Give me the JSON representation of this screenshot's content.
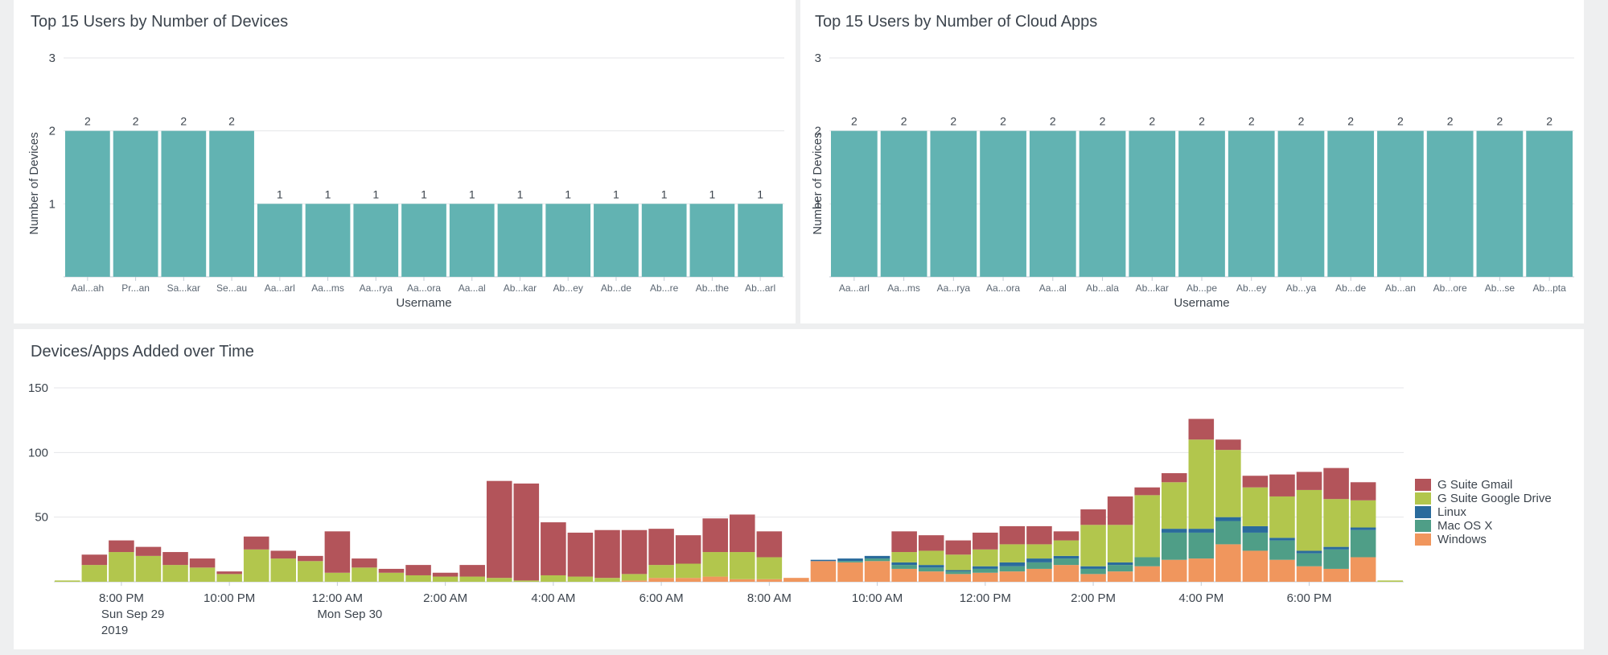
{
  "colors": {
    "bar": "#62b3b2",
    "grid": "#e4e6e8",
    "axis": "#c3cbd4",
    "series": [
      "#f0965d",
      "#4f9e87",
      "#2a6b9c",
      "#b2c64d",
      "#b3545a"
    ]
  },
  "chart_data": [
    {
      "type": "bar",
      "title": "Top 15 Users by Number of Devices",
      "xlabel": "Username",
      "ylabel": "Number of Devices",
      "ylim": [
        0,
        3
      ],
      "yticks": [
        "1",
        "2",
        "3"
      ],
      "categories": [
        "Aal...ah",
        "Pr...an",
        "Sa...kar",
        "Se...au",
        "Aa...arl",
        "Aa...ms",
        "Aa...rya",
        "Aa...ora",
        "Aa...al",
        "Ab...kar",
        "Ab...ey",
        "Ab...de",
        "Ab...re",
        "Ab...the",
        "Ab...arl"
      ],
      "values": [
        2,
        2,
        2,
        2,
        1,
        1,
        1,
        1,
        1,
        1,
        1,
        1,
        1,
        1,
        1
      ],
      "data_labels": [
        "2",
        "2",
        "2",
        "2",
        "1",
        "1",
        "1",
        "1",
        "1",
        "1",
        "1",
        "1",
        "1",
        "1",
        "1"
      ]
    },
    {
      "type": "bar",
      "title": "Top 15 Users by Number of Cloud Apps",
      "xlabel": "Username",
      "ylabel": "Number of Devices",
      "ylim": [
        0,
        3
      ],
      "yticks": [
        "1",
        "2",
        "3"
      ],
      "categories": [
        "Aa...arl",
        "Aa...ms",
        "Aa...rya",
        "Aa...ora",
        "Aa...al",
        "Ab...ala",
        "Ab...kar",
        "Ab...pe",
        "Ab...ey",
        "Ab...ya",
        "Ab...de",
        "Ab...an",
        "Ab...ore",
        "Ab...se",
        "Ab...pta"
      ],
      "values": [
        2,
        2,
        2,
        2,
        2,
        2,
        2,
        2,
        2,
        2,
        2,
        2,
        2,
        2,
        2
      ],
      "data_labels": [
        "2",
        "2",
        "2",
        "2",
        "2",
        "2",
        "2",
        "2",
        "2",
        "2",
        "2",
        "2",
        "2",
        "2",
        "2"
      ]
    },
    {
      "type": "bar",
      "stacked": true,
      "title": "Devices/Apps Added over Time",
      "ylim": [
        0,
        150
      ],
      "yticks": [
        "50",
        "100",
        "150"
      ],
      "time_labels": [
        {
          "slot": 2.5,
          "lines": [
            "8:00 PM",
            "Sun Sep 29",
            "2019"
          ]
        },
        {
          "slot": 6.5,
          "lines": [
            "10:00 PM"
          ]
        },
        {
          "slot": 10.5,
          "lines": [
            "12:00 AM",
            "Mon Sep 30"
          ]
        },
        {
          "slot": 14.5,
          "lines": [
            "2:00 AM"
          ]
        },
        {
          "slot": 18.5,
          "lines": [
            "4:00 AM"
          ]
        },
        {
          "slot": 22.5,
          "lines": [
            "6:00 AM"
          ]
        },
        {
          "slot": 26.5,
          "lines": [
            "8:00 AM"
          ]
        },
        {
          "slot": 30.5,
          "lines": [
            "10:00 AM"
          ]
        },
        {
          "slot": 34.5,
          "lines": [
            "12:00 PM"
          ]
        },
        {
          "slot": 38.5,
          "lines": [
            "2:00 PM"
          ]
        },
        {
          "slot": 42.5,
          "lines": [
            "4:00 PM"
          ]
        },
        {
          "slot": 46.5,
          "lines": [
            "6:00 PM"
          ]
        }
      ],
      "legend": [
        "G Suite Gmail",
        "G Suite Google Drive",
        "Linux",
        "Mac OS X",
        "Windows"
      ],
      "series": [
        {
          "name": "Windows",
          "values": [
            0,
            0,
            0,
            0,
            0,
            0,
            0,
            0,
            0,
            0,
            0,
            0,
            0,
            0,
            0,
            0,
            0,
            0,
            0,
            0,
            0,
            1,
            3,
            3,
            4,
            2,
            2,
            3,
            16,
            15,
            16,
            10,
            8,
            6,
            7,
            8,
            10,
            13,
            6,
            8,
            12,
            17,
            18,
            29,
            24,
            17,
            12,
            10,
            19,
            0
          ]
        },
        {
          "name": "Mac OS X",
          "values": [
            0,
            0,
            0,
            0,
            0,
            0,
            0,
            0,
            0,
            0,
            0,
            0,
            0,
            0,
            0,
            0,
            0,
            0,
            0,
            0,
            0,
            0,
            0,
            0,
            0,
            0,
            0,
            0,
            0,
            1,
            2,
            3,
            3,
            2,
            3,
            4,
            5,
            5,
            4,
            5,
            7,
            21,
            20,
            18,
            14,
            15,
            10,
            15,
            21,
            0
          ]
        },
        {
          "name": "Linux",
          "values": [
            0,
            0,
            0,
            0,
            0,
            0,
            0,
            0,
            0,
            0,
            0,
            0,
            0,
            0,
            0,
            0,
            0,
            0,
            0,
            0,
            0,
            0,
            0,
            0,
            0,
            0,
            0,
            0,
            1,
            2,
            2,
            2,
            2,
            1,
            2,
            3,
            3,
            2,
            2,
            2,
            0,
            3,
            3,
            3,
            5,
            2,
            2,
            2,
            2,
            0
          ]
        },
        {
          "name": "G Suite Google Drive",
          "values": [
            1,
            13,
            23,
            20,
            13,
            11,
            6,
            25,
            18,
            16,
            7,
            11,
            7,
            5,
            4,
            4,
            3,
            1,
            5,
            4,
            3,
            5,
            10,
            11,
            19,
            21,
            17,
            0,
            0,
            0,
            0,
            8,
            11,
            12,
            13,
            14,
            11,
            12,
            32,
            29,
            48,
            36,
            69,
            52,
            30,
            32,
            47,
            37,
            21,
            1
          ]
        },
        {
          "name": "G Suite Gmail",
          "values": [
            0,
            8,
            9,
            7,
            10,
            7,
            2,
            10,
            6,
            4,
            32,
            7,
            3,
            8,
            3,
            9,
            75,
            75,
            41,
            34,
            37,
            34,
            28,
            22,
            26,
            29,
            20,
            0,
            0,
            0,
            0,
            16,
            12,
            11,
            13,
            14,
            14,
            7,
            12,
            22,
            6,
            7,
            16,
            8,
            9,
            17,
            14,
            24,
            14,
            0
          ]
        }
      ]
    }
  ]
}
